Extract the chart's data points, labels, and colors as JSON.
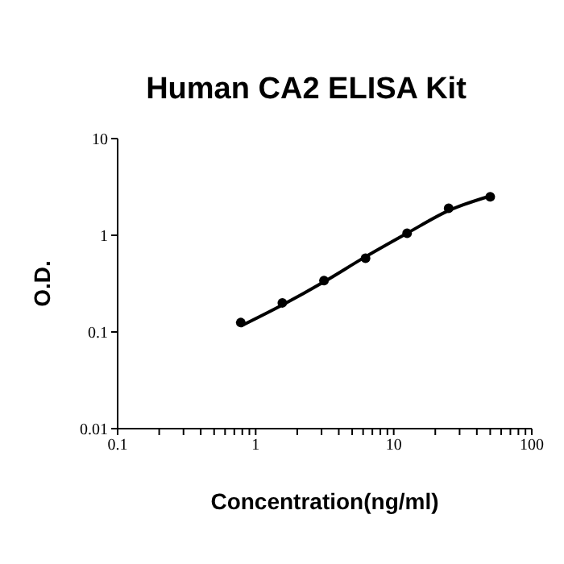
{
  "chart_data": {
    "type": "scatter",
    "title": "Human CA2 ELISA Kit",
    "xlabel": "Concentration(ng/ml)",
    "ylabel": "O.D.",
    "log": "xy",
    "grid": false,
    "xlim": [
      0.1,
      100
    ],
    "ylim": [
      0.01,
      10
    ],
    "xticks": [
      0.1,
      {
        "value": 0.2,
        "label": null
      },
      {
        "value": 0.3,
        "label": null
      },
      {
        "value": 0.4,
        "label": null
      },
      {
        "value": 0.5,
        "label": null
      },
      {
        "value": 0.6,
        "label": null
      },
      {
        "value": 0.7,
        "label": null
      },
      {
        "value": 0.8,
        "label": null
      },
      {
        "value": 0.9,
        "label": null
      },
      1,
      {
        "value": 2,
        "label": null
      },
      {
        "value": 3,
        "label": null
      },
      {
        "value": 4,
        "label": null
      },
      {
        "value": 5,
        "label": null
      },
      {
        "value": 6,
        "label": null
      },
      {
        "value": 7,
        "label": null
      },
      {
        "value": 8,
        "label": null
      },
      {
        "value": 9,
        "label": null
      },
      10,
      {
        "value": 20,
        "label": null
      },
      {
        "value": 30,
        "label": null
      },
      {
        "value": 40,
        "label": null
      },
      {
        "value": 50,
        "label": null
      },
      {
        "value": 60,
        "label": null
      },
      {
        "value": 70,
        "label": null
      },
      {
        "value": 80,
        "label": null
      },
      {
        "value": 90,
        "label": null
      },
      100
    ],
    "yticks": [
      0.01,
      0.1,
      1,
      10
    ],
    "series": [
      {
        "color": "#000000",
        "marker": "circle",
        "x": [
          0.78,
          1.56,
          3.125,
          6.25,
          12.5,
          25,
          50
        ],
        "values": [
          0.125,
          0.2,
          0.34,
          0.58,
          1.05,
          1.9,
          2.5
        ]
      },
      {
        "type": "line",
        "color": "#000000",
        "marker": "none",
        "line_style": "solid",
        "x": [
          0.78,
          1.56,
          3.125,
          6.25,
          12.5,
          25,
          50
        ],
        "values": [
          0.115,
          0.19,
          0.33,
          0.6,
          1.05,
          1.8,
          2.55
        ]
      }
    ]
  }
}
